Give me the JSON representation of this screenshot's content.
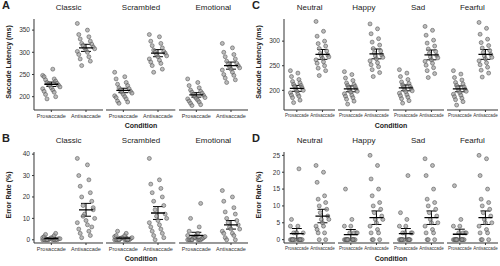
{
  "chart_data": [
    {
      "type": "scatter",
      "panel_label": "A",
      "y_label": "Saccade Latency (ms)",
      "x_label": "Condition",
      "ylim": [
        170,
        375
      ],
      "yticks": [
        200,
        250,
        300,
        350
      ],
      "color": "#9e9e9e",
      "facets": [
        {
          "title": "Classic",
          "categories": [
            "Prosaccade",
            "Antisaccade"
          ],
          "points": [
            [
              248,
              262,
              245,
              240,
              238,
              235,
              232,
              230,
              228,
              226,
              225,
              222,
              220,
              218,
              215,
              212,
              210,
              205,
              200,
              195
            ],
            [
              365,
              350,
              340,
              335,
              330,
              325,
              320,
              318,
              315,
              312,
              310,
              308,
              305,
              302,
              300,
              295,
              290,
              285,
              280,
              270
            ]
          ],
          "means": [
            228,
            310
          ],
          "errors": [
            5,
            8
          ]
        },
        {
          "title": "Scrambled",
          "categories": [
            "Prosaccade",
            "Antisaccade"
          ],
          "points": [
            [
              255,
              245,
              240,
              232,
              228,
              225,
              220,
              218,
              215,
              212,
              210,
              208,
              205,
              202,
              200,
              198,
              195,
              190,
              188,
              185
            ],
            [
              340,
              335,
              325,
              320,
              315,
              310,
              305,
              302,
              300,
              298,
              295,
              292,
              290,
              285,
              282,
              278,
              275,
              270,
              262,
              255
            ]
          ],
          "means": [
            214,
            298
          ],
          "errors": [
            5,
            8
          ]
        },
        {
          "title": "Emotional",
          "categories": [
            "Prosaccade",
            "Antisaccade"
          ],
          "points": [
            [
              240,
              232,
              225,
              220,
              215,
              212,
              210,
              208,
              205,
              203,
              200,
              198,
              196,
              195,
              192,
              190,
              188,
              185,
              182,
              180
            ],
            [
              320,
              310,
              300,
              295,
              290,
              285,
              280,
              275,
              272,
              270,
              268,
              265,
              262,
              260,
              255,
              250,
              248,
              242,
              238,
              232
            ]
          ],
          "means": [
            204,
            270
          ],
          "errors": [
            5,
            8
          ]
        }
      ]
    },
    {
      "type": "scatter",
      "panel_label": "B",
      "y_label": "Error Rate (%)",
      "x_label": "Condition",
      "ylim": [
        -1.5,
        41
      ],
      "yticks": [
        0,
        10,
        20,
        30,
        40
      ],
      "color": "#9e9e9e",
      "facets": [
        {
          "title": "Classic",
          "categories": [
            "Prosaccade",
            "Antisaccade"
          ],
          "points": [
            [
              0,
              0,
              0,
              0,
              0,
              0,
              0,
              0,
              0,
              0.5,
              0.5,
              0.5,
              1,
              1,
              1,
              1.5,
              2,
              2.5,
              3,
              0
            ],
            [
              38,
              35,
              30,
              28,
              25,
              22,
              20,
              18,
              16,
              14,
              12,
              10,
              9,
              8,
              7,
              5,
              4,
              3,
              2,
              1,
              6,
              11,
              15
            ]
          ],
          "means": [
            0.6,
            14
          ],
          "errors": [
            0.4,
            3
          ]
        },
        {
          "title": "Scrambled",
          "categories": [
            "Prosaccade",
            "Antisaccade"
          ],
          "points": [
            [
              0,
              0,
              0,
              0,
              0,
              0,
              0,
              0,
              0.5,
              0.5,
              1,
              1,
              1,
              1.5,
              2,
              2,
              3,
              4,
              0,
              0
            ],
            [
              38,
              28,
              26,
              24,
              22,
              20,
              18,
              16,
              14,
              12,
              11,
              10,
              9,
              8,
              7,
              6,
              5,
              4,
              3,
              2,
              1,
              0
            ]
          ],
          "means": [
            0.8,
            12.5
          ],
          "errors": [
            0.5,
            3
          ]
        },
        {
          "title": "Emotional",
          "categories": [
            "Prosaccade",
            "Antisaccade"
          ],
          "points": [
            [
              0,
              0,
              0,
              0,
              0,
              0,
              0,
              0.5,
              1,
              1,
              1,
              1.5,
              2,
              2,
              3,
              4,
              6,
              10,
              17,
              0
            ],
            [
              23,
              20,
              18,
              15,
              13,
              12,
              10,
              9,
              8,
              7,
              6,
              5,
              5,
              4,
              3,
              3,
              2,
              1,
              0,
              0
            ]
          ],
          "means": [
            2,
            7
          ],
          "errors": [
            1.5,
            2
          ]
        }
      ]
    },
    {
      "type": "scatter",
      "panel_label": "C",
      "y_label": "Saccade Latency (ms)",
      "x_label": "Condition",
      "ylim": [
        160,
        345
      ],
      "yticks": [
        200,
        250,
        300
      ],
      "color": "#9e9e9e",
      "facets": [
        {
          "title": "Neutral",
          "categories": [
            "Prosaccade",
            "Antisaccade"
          ],
          "points": [
            [
              240,
              235,
              228,
              222,
              218,
              215,
              212,
              210,
              208,
              205,
              203,
              200,
              198,
              195,
              192,
              190,
              188,
              185,
              180,
              175
            ],
            [
              340,
              320,
              310,
              300,
              295,
              290,
              285,
              280,
              275,
              272,
              270,
              268,
              265,
              262,
              258,
              255,
              250,
              245,
              240,
              230
            ]
          ],
          "means": [
            204,
            273
          ],
          "errors": [
            6,
            10
          ]
        },
        {
          "title": "Happy",
          "categories": [
            "Prosaccade",
            "Antisaccade"
          ],
          "points": [
            [
              238,
              232,
              225,
              220,
              215,
              212,
              210,
              208,
              205,
              203,
              200,
              198,
              196,
              193,
              190,
              188,
              185,
              182,
              178,
              172
            ],
            [
              335,
              325,
              315,
              305,
              298,
              292,
              285,
              280,
              276,
              272,
              270,
              267,
              264,
              260,
              256,
              252,
              248,
              242,
              236,
              228
            ]
          ],
          "means": [
            203,
            274
          ],
          "errors": [
            6,
            10
          ]
        },
        {
          "title": "Sad",
          "categories": [
            "Prosaccade",
            "Antisaccade"
          ],
          "points": [
            [
              242,
              235,
              228,
              222,
              217,
              214,
              211,
              208,
              206,
              204,
              201,
              199,
              197,
              194,
              191,
              189,
              186,
              183,
              179,
              174
            ],
            [
              330,
              322,
              312,
              302,
              296,
              290,
              284,
              279,
              275,
              271,
              268,
              266,
              262,
              259,
              255,
              251,
              246,
              240,
              234,
              226
            ]
          ],
          "means": [
            205,
            272
          ],
          "errors": [
            6,
            10
          ]
        },
        {
          "title": "Fearful",
          "categories": [
            "Prosaccade",
            "Antisaccade"
          ],
          "points": [
            [
              240,
              233,
              226,
              221,
              216,
              213,
              210,
              207,
              205,
              202,
              200,
              198,
              195,
              192,
              190,
              187,
              184,
              181,
              177,
              170
            ],
            [
              338,
              326,
              314,
              304,
              297,
              291,
              286,
              281,
              277,
              273,
              270,
              267,
              264,
              260,
              256,
              252,
              247,
              241,
              235,
              227
            ]
          ],
          "means": [
            203,
            273
          ],
          "errors": [
            6,
            10
          ]
        }
      ]
    },
    {
      "type": "scatter",
      "panel_label": "D",
      "y_label": "Error Rate (%)",
      "x_label": "Condition",
      "ylim": [
        -1,
        26
      ],
      "yticks": [
        0,
        5,
        10,
        15,
        20,
        25
      ],
      "color": "#9e9e9e",
      "facets": [
        {
          "title": "Neutral",
          "categories": [
            "Prosaccade",
            "Antisaccade"
          ],
          "points": [
            [
              0,
              0,
              0,
              0,
              0,
              0,
              0,
              0,
              0,
              0,
              2,
              2,
              2,
              4,
              4,
              6,
              21,
              0,
              0,
              2
            ],
            [
              22,
              20,
              17,
              13,
              12,
              11,
              10,
              9,
              8,
              7,
              6,
              6,
              5,
              4,
              4,
              3,
              2,
              2,
              0,
              0
            ]
          ],
          "means": [
            1.8,
            7
          ],
          "errors": [
            1.5,
            2
          ]
        },
        {
          "title": "Happy",
          "categories": [
            "Prosaccade",
            "Antisaccade"
          ],
          "points": [
            [
              0,
              0,
              0,
              0,
              0,
              0,
              0,
              0,
              0,
              2,
              2,
              2,
              4,
              4,
              6,
              15,
              0,
              0,
              2,
              0
            ],
            [
              25,
              22,
              18,
              15,
              13,
              11,
              10,
              9,
              8,
              7,
              6,
              6,
              5,
              4,
              3,
              2,
              2,
              0,
              0,
              0
            ]
          ],
          "means": [
            1.5,
            6.5
          ],
          "errors": [
            1.5,
            2
          ]
        },
        {
          "title": "Sad",
          "categories": [
            "Prosaccade",
            "Antisaccade"
          ],
          "points": [
            [
              0,
              0,
              0,
              0,
              0,
              0,
              0,
              0,
              0,
              2,
              2,
              2,
              4,
              4,
              6,
              8,
              19,
              0,
              0,
              2
            ],
            [
              24,
              22,
              19,
              15,
              12,
              11,
              10,
              9,
              8,
              7,
              6,
              5,
              5,
              4,
              3,
              2,
              2,
              0,
              0,
              0
            ]
          ],
          "means": [
            1.8,
            6.5
          ],
          "errors": [
            1.5,
            2
          ]
        },
        {
          "title": "Fearful",
          "categories": [
            "Prosaccade",
            "Antisaccade"
          ],
          "points": [
            [
              0,
              0,
              0,
              0,
              0,
              0,
              0,
              0,
              0,
              2,
              2,
              2,
              4,
              4,
              6,
              16,
              0,
              0,
              2,
              0
            ],
            [
              25,
              24,
              19,
              15,
              12,
              11,
              10,
              9,
              8,
              7,
              6,
              5,
              5,
              4,
              3,
              2,
              2,
              0,
              0,
              0
            ]
          ],
          "means": [
            1.6,
            6.5
          ],
          "errors": [
            1.5,
            2
          ]
        }
      ]
    }
  ]
}
